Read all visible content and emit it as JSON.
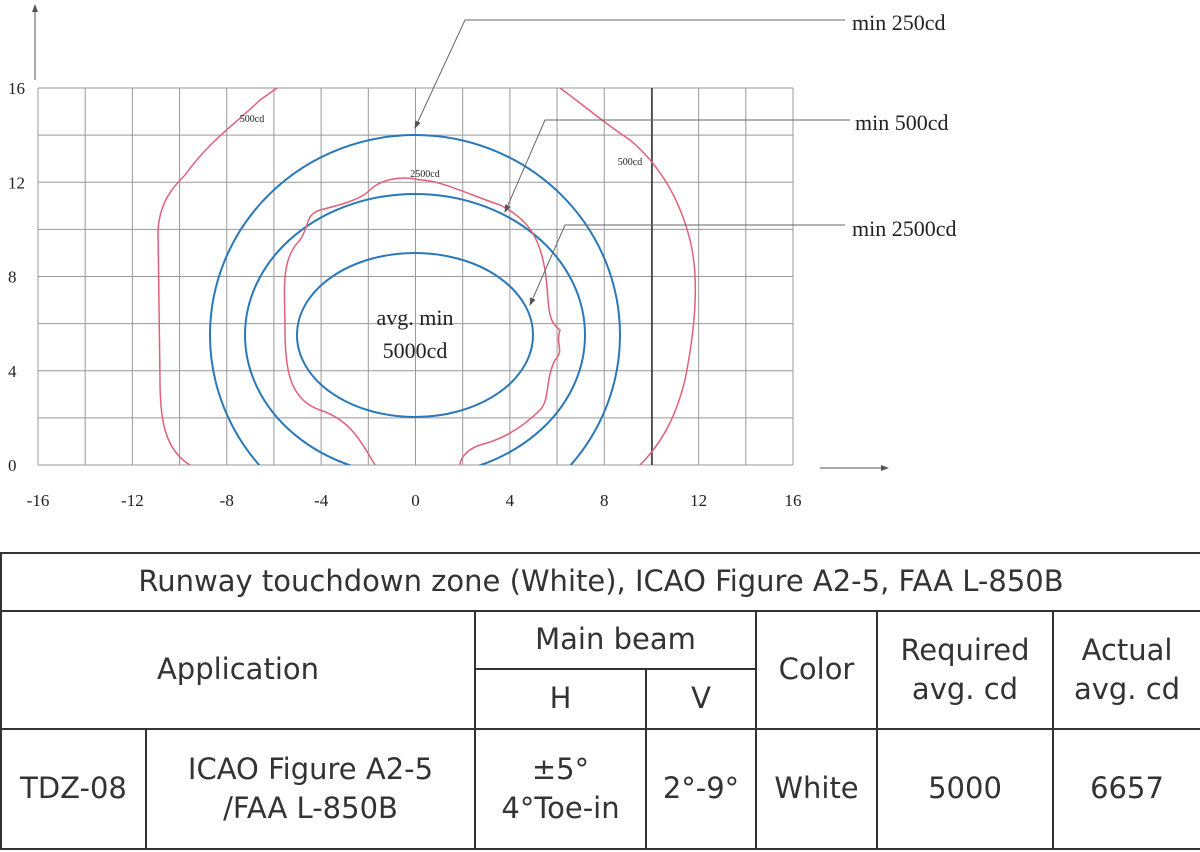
{
  "diagram": {
    "y_ticks": [
      "16",
      "12",
      "8",
      "4",
      "0"
    ],
    "x_ticks": [
      "-16",
      "-12",
      "-8",
      "-4",
      "0",
      "4",
      "8",
      "12",
      "16"
    ],
    "annotations": [
      "min 250cd",
      "min 500cd",
      "min 2500cd"
    ],
    "contour_labels": [
      "500cd",
      "2500cd",
      "500cd"
    ],
    "center_label": [
      "avg. min",
      "5000cd"
    ]
  },
  "table": {
    "title": "Runway touchdown zone (White), ICAO Figure A2-5, FAA L-850B",
    "header": {
      "application": "Application",
      "main_beam": "Main beam",
      "h": "H",
      "v": "V",
      "color": "Color",
      "required": "Required\navg. cd",
      "actual": "Actual\navg. cd"
    },
    "rows": [
      [
        "TDZ-08",
        "ICAO Figure A2-5\n/FAA L-850B",
        "±5°\n4°Toe-in",
        "2°-9°",
        "White",
        "5000",
        "6657"
      ]
    ]
  }
}
